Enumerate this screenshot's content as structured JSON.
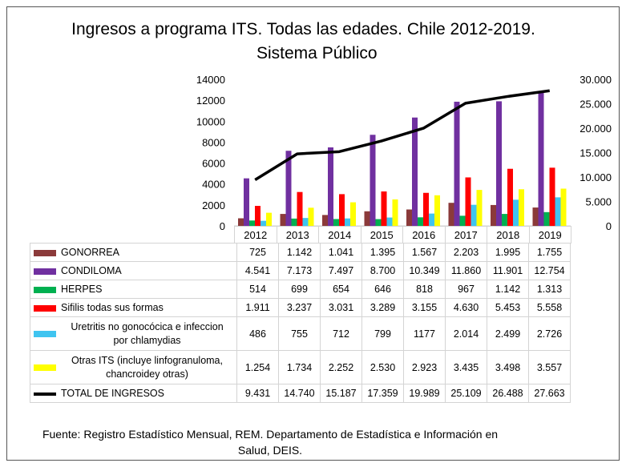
{
  "title": {
    "line1": "Ingresos a programa ITS. Todas las edades. Chile 2012-2019.",
    "line2": "Sistema Público"
  },
  "source": "Fuente: Registro Estadístico Mensual, REM. Departamento de Estadística e Información en Salud, DEIS.",
  "chart_data": {
    "type": "bar",
    "title": "Ingresos a programa ITS. Todas las edades. Chile 2012-2019. Sistema Público",
    "categories": [
      "2012",
      "2013",
      "2014",
      "2015",
      "2016",
      "2017",
      "2018",
      "2019"
    ],
    "y_left": {
      "min": 0,
      "max": 14000,
      "ticks": [
        "0",
        "2000",
        "4000",
        "6000",
        "8000",
        "10000",
        "12000",
        "14000"
      ]
    },
    "y_right": {
      "min": 0,
      "max": 30000,
      "ticks": [
        "0",
        "5.000",
        "10.000",
        "15.000",
        "20.000",
        "25.000",
        "30.000"
      ]
    },
    "grid": false,
    "legend_placement": "data-table below chart",
    "series": [
      {
        "name": "GONORREA",
        "color": "#8B3A3A",
        "axis": "left",
        "type": "bar",
        "values": [
          725,
          1142,
          1041,
          1395,
          1567,
          2203,
          1995,
          1755
        ],
        "labels": [
          "725",
          "1.142",
          "1.041",
          "1.395",
          "1.567",
          "2.203",
          "1.995",
          "1.755"
        ]
      },
      {
        "name": "CONDILOMA",
        "color": "#7030A0",
        "axis": "left",
        "type": "bar",
        "values": [
          4541,
          7173,
          7497,
          8700,
          10349,
          11860,
          11901,
          12754
        ],
        "labels": [
          "4.541",
          "7.173",
          "7.497",
          "8.700",
          "10.349",
          "11.860",
          "11.901",
          "12.754"
        ]
      },
      {
        "name": "HERPES",
        "color": "#00B050",
        "axis": "left",
        "type": "bar",
        "values": [
          514,
          699,
          654,
          646,
          818,
          967,
          1142,
          1313
        ],
        "labels": [
          "514",
          "699",
          "654",
          "646",
          "818",
          "967",
          "1.142",
          "1.313"
        ]
      },
      {
        "name": "Sifilis todas sus formas",
        "color": "#FF0000",
        "axis": "left",
        "type": "bar",
        "values": [
          1911,
          3237,
          3031,
          3289,
          3155,
          4630,
          5453,
          5558
        ],
        "labels": [
          "1.911",
          "3.237",
          "3.031",
          "3.289",
          "3.155",
          "4.630",
          "5.453",
          "5.558"
        ]
      },
      {
        "name": "Uretritis no gonocócica e infeccion por chlamydias",
        "color": "#3FC4F0",
        "axis": "left",
        "type": "bar",
        "name_lines": [
          "Uretritis no gonocócica e infeccion",
          "por chlamydias"
        ],
        "values": [
          486,
          755,
          712,
          799,
          1177,
          2014,
          2499,
          2726
        ],
        "labels": [
          "486",
          "755",
          "712",
          "799",
          "1177",
          "2.014",
          "2.499",
          "2.726"
        ]
      },
      {
        "name": "Otras ITS (incluye linfogranuloma, chancroidey otras)",
        "color": "#FFFF00",
        "axis": "left",
        "type": "bar",
        "name_lines": [
          "Otras ITS (incluye linfogranuloma,",
          "chancroidey otras)"
        ],
        "values": [
          1254,
          1734,
          2252,
          2530,
          2923,
          3435,
          3498,
          3557
        ],
        "labels": [
          "1.254",
          "1.734",
          "2.252",
          "2.530",
          "2.923",
          "3.435",
          "3.498",
          "3.557"
        ]
      },
      {
        "name": "TOTAL DE INGRESOS",
        "color": "#000000",
        "axis": "right",
        "type": "line",
        "values": [
          9431,
          14740,
          15187,
          17359,
          19989,
          25109,
          26488,
          27663
        ],
        "labels": [
          "9.431",
          "14.740",
          "15.187",
          "17.359",
          "19.989",
          "25.109",
          "26.488",
          "27.663"
        ]
      }
    ]
  }
}
